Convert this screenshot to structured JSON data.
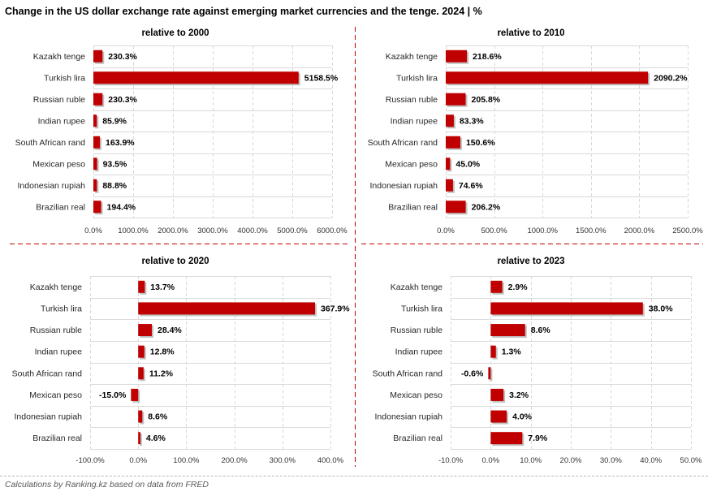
{
  "title": "Change in the US dollar exchange rate against emerging market currencies and the tenge. 2024 | %",
  "footer": "Calculations by Ranking.kz based on data from FRED",
  "colors": {
    "bar": "#c00000",
    "bar_shadow": "#b0b0b0",
    "grid": "#d9d9d9",
    "divider": "#c00000"
  },
  "chart_data": [
    {
      "type": "bar",
      "orientation": "horizontal",
      "title": "relative to 2000",
      "categories": [
        "Kazakh tenge",
        "Turkish lira",
        "Russian ruble",
        "Indian rupee",
        "South African rand",
        "Mexican peso",
        "Indonesian rupiah",
        "Brazilian real"
      ],
      "values": [
        230.3,
        5158.5,
        230.3,
        85.9,
        163.9,
        93.5,
        88.8,
        194.4
      ],
      "labels": [
        "230.3%",
        "5158.5%",
        "230.3%",
        "85.9%",
        "163.9%",
        "93.5%",
        "88.8%",
        "194.4%"
      ],
      "xlim": [
        0,
        6000
      ],
      "ticks": [
        0,
        1000,
        2000,
        3000,
        4000,
        5000,
        6000
      ],
      "tick_labels": [
        "0.0%",
        "1000.0%",
        "2000.0%",
        "3000.0%",
        "4000.0%",
        "5000.0%",
        "6000.0%"
      ],
      "grid": true
    },
    {
      "type": "bar",
      "orientation": "horizontal",
      "title": "relative to 2010",
      "categories": [
        "Kazakh tenge",
        "Turkish lira",
        "Russian ruble",
        "Indian rupee",
        "South African rand",
        "Mexican peso",
        "Indonesian rupiah",
        "Brazilian real"
      ],
      "values": [
        218.6,
        2090.2,
        205.8,
        83.3,
        150.6,
        45.0,
        74.6,
        206.2
      ],
      "labels": [
        "218.6%",
        "2090.2%",
        "205.8%",
        "83.3%",
        "150.6%",
        "45.0%",
        "74.6%",
        "206.2%"
      ],
      "xlim": [
        0,
        2500
      ],
      "ticks": [
        0,
        500,
        1000,
        1500,
        2000,
        2500
      ],
      "tick_labels": [
        "0.0%",
        "500.0%",
        "1000.0%",
        "1500.0%",
        "2000.0%",
        "2500.0%"
      ],
      "grid": true
    },
    {
      "type": "bar",
      "orientation": "horizontal",
      "title": "relative to 2020",
      "categories": [
        "Kazakh tenge",
        "Turkish lira",
        "Russian ruble",
        "Indian rupee",
        "South African rand",
        "Mexican peso",
        "Indonesian rupiah",
        "Brazilian real"
      ],
      "values": [
        13.7,
        367.9,
        28.4,
        12.8,
        11.2,
        -15.0,
        8.6,
        4.6
      ],
      "labels": [
        "13.7%",
        "367.9%",
        "28.4%",
        "12.8%",
        "11.2%",
        "-15.0%",
        "8.6%",
        "4.6%"
      ],
      "xlim": [
        -100,
        400
      ],
      "ticks": [
        -100,
        0,
        100,
        200,
        300,
        400
      ],
      "tick_labels": [
        "-100.0%",
        "0.0%",
        "100.0%",
        "200.0%",
        "300.0%",
        "400.0%"
      ],
      "grid": true
    },
    {
      "type": "bar",
      "orientation": "horizontal",
      "title": "relative to 2023",
      "categories": [
        "Kazakh tenge",
        "Turkish lira",
        "Russian ruble",
        "Indian rupee",
        "South African rand",
        "Mexican peso",
        "Indonesian rupiah",
        "Brazilian real"
      ],
      "values": [
        2.9,
        38.0,
        8.6,
        1.3,
        -0.6,
        3.2,
        4.0,
        7.9
      ],
      "labels": [
        "2.9%",
        "38.0%",
        "8.6%",
        "1.3%",
        "-0.6%",
        "3.2%",
        "4.0%",
        "7.9%"
      ],
      "xlim": [
        -10,
        50
      ],
      "ticks": [
        -10,
        0,
        10,
        20,
        30,
        40,
        50
      ],
      "tick_labels": [
        "-10.0%",
        "0.0%",
        "10.0%",
        "20.0%",
        "30.0%",
        "40.0%",
        "50.0%"
      ],
      "grid": true
    }
  ]
}
